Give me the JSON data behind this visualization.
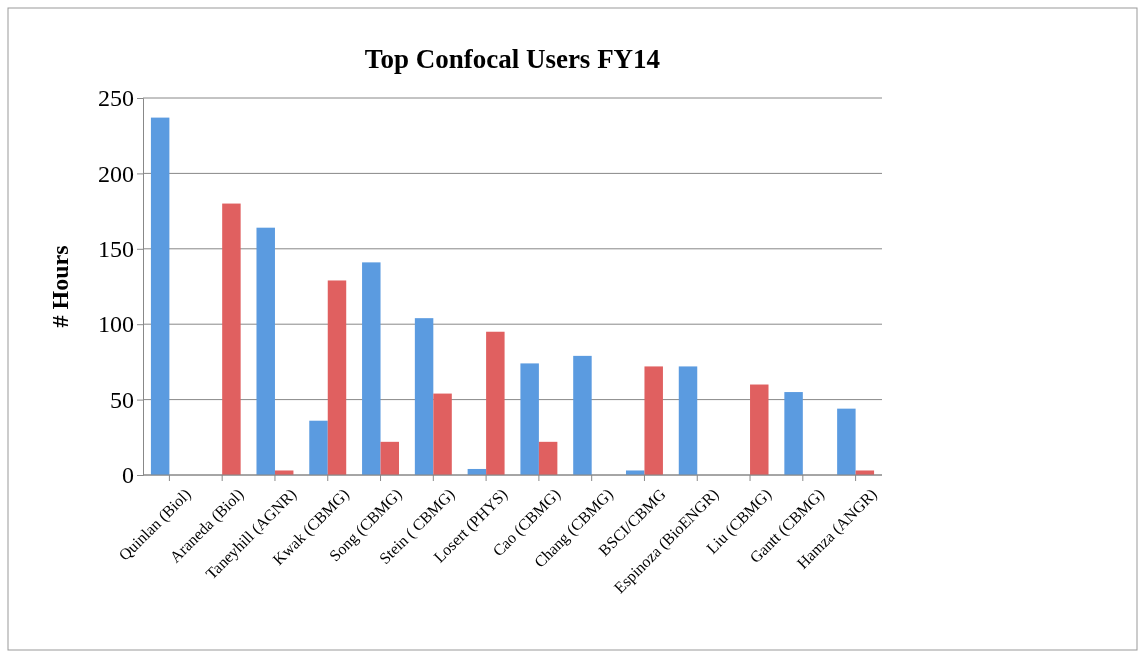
{
  "chart_data": {
    "type": "bar",
    "title": "Top Confocal Users FY14",
    "ylabel": "# Hours",
    "categories": [
      "Quinlan (Biol)",
      "Araneda (Biol)",
      "Taneyhill (AGNR)",
      "Kwak (CBMG)",
      "Song (CBMG)",
      "Stein ( CBMG)",
      "Losert (PHYS)",
      "Cao (CBMG)",
      "Chang (CBMG)",
      "BSCI/CBMG",
      "Espinoza (BioENGR)",
      "Liu (CBMG)",
      "Gantt (CBMG)",
      "Hamza (ANGR)"
    ],
    "series": [
      {
        "color": "#5b9be0",
        "values": [
          237,
          0,
          164,
          36,
          141,
          104,
          4,
          74,
          79,
          3,
          72,
          0,
          55,
          44
        ]
      },
      {
        "color": "#e06060",
        "values": [
          0,
          180,
          3,
          129,
          22,
          54,
          95,
          22,
          0,
          72,
          0,
          60,
          0,
          3
        ]
      }
    ],
    "ylim": [
      0,
      250
    ],
    "yticks": [
      0,
      50,
      100,
      150,
      200,
      250
    ],
    "grid": "y",
    "legend": false
  }
}
